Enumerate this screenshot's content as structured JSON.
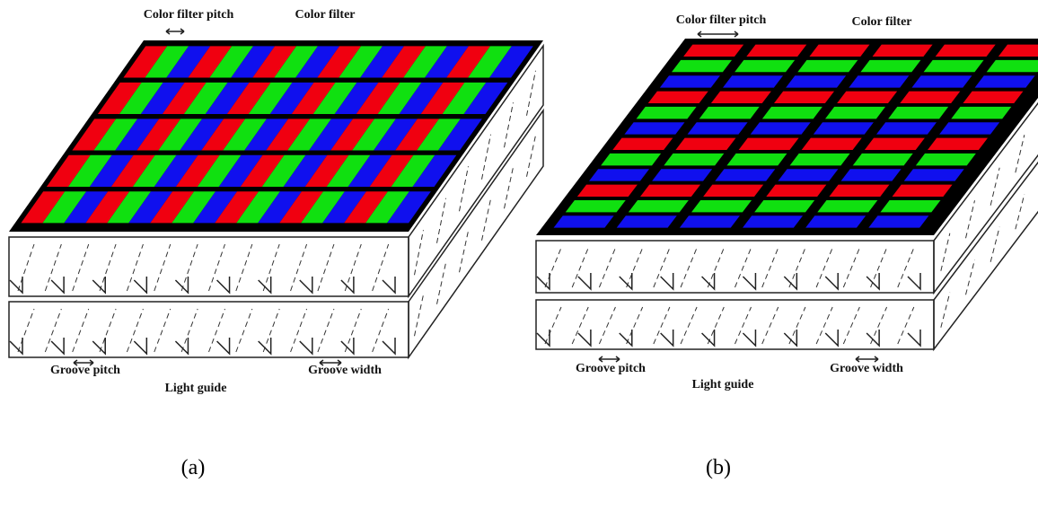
{
  "panels": [
    {
      "caption": "(a)",
      "color_filter_pitch": "Color filter pitch",
      "color_filter": "Color filter",
      "groove_pitch": "Groove pitch",
      "light_guide": "Light guide",
      "groove_width": "Groove width"
    },
    {
      "caption": "(b)",
      "color_filter_pitch": "Color filter pitch",
      "color_filter": "Color filter",
      "groove_pitch": "Groove pitch",
      "light_guide": "Light guide",
      "groove_width": "Groove width"
    }
  ]
}
